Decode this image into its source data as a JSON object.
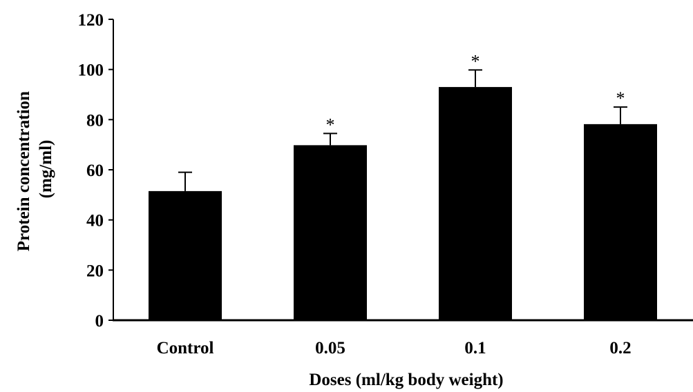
{
  "chart_data": {
    "type": "bar",
    "title": "",
    "xlabel": "Doses (ml/kg body weight)",
    "ylabel_lines": [
      "Protein concentration",
      "(mg/ml)"
    ],
    "categories": [
      "Control",
      "0.05",
      "0.1",
      "0.2"
    ],
    "values": [
      51.5,
      69.8,
      93.0,
      78.2
    ],
    "error_plus": [
      7.5,
      4.7,
      6.8,
      6.8
    ],
    "significance": [
      "",
      "*",
      "*",
      "*"
    ],
    "ylim": [
      0,
      120
    ],
    "yticks": [
      0,
      20,
      40,
      60,
      80,
      100,
      120
    ],
    "grid": false,
    "bar_color": "#000000"
  }
}
